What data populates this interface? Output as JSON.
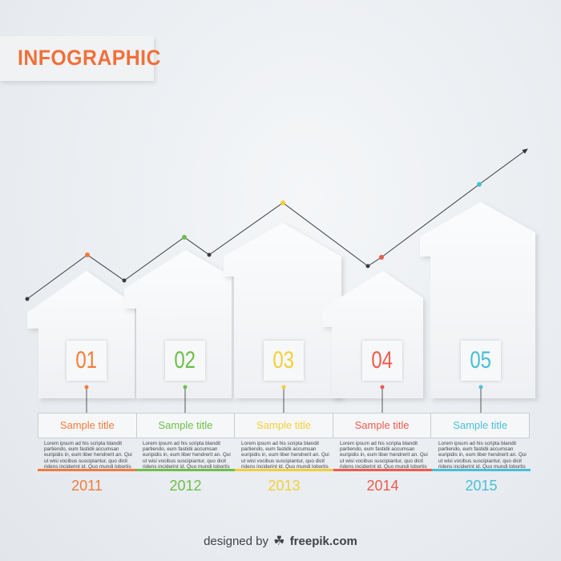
{
  "title": "INFOGRAPHIC",
  "colors": {
    "title": "#f0703a",
    "step1": "#f27c3c",
    "step2": "#6dbf4b",
    "step3": "#f2cf3b",
    "step4": "#f05a4e",
    "step5": "#49bfd8"
  },
  "steps": [
    {
      "number": "01",
      "title": "Sample title",
      "year": "2011",
      "text": "Lorem ipsum ad his scripta blandit partiendo, eum fastidii accumsan euripidis in, eum liber hendrerit an. Qui ut wisi vocibus suscipiantur, quo dicit ridens inciderint id. Quo mundi lobortis"
    },
    {
      "number": "02",
      "title": "Sample title",
      "year": "2012",
      "text": "Lorem ipsum ad his scripta blandit partiendo, eum fastidii accumsan euripidis in, eum liber hendrerit an. Qui ut wisi vocibus suscipiantur, quo dicit ridens inciderint id. Quo mundi lobortis"
    },
    {
      "number": "03",
      "title": "Sample title",
      "year": "2013",
      "text": "Lorem ipsum ad his scripta blandit partiendo, eum fastidii accumsan euripidis in, eum liber hendrerit an. Qui ut wisi vocibus suscipiantur, quo dicit ridens inciderint id. Quo mundi lobortis"
    },
    {
      "number": "04",
      "title": "Sample title",
      "year": "2014",
      "text": "Lorem ipsum ad his scripta blandit partiendo, eum fastidii accumsan euripidis in, eum liber hendrerit an. Qui ut wisi vocibus suscipiantur, quo dicit ridens inciderint id. Quo mundi lobortis"
    },
    {
      "number": "05",
      "title": "Sample title",
      "year": "2015",
      "text": "Lorem ipsum ad his scripta blandit partiendo, eum fastidii accumsan euripidis in, eum liber hendrerit an. Qui ut wisi vocibus suscipiantur, quo dicit ridens inciderint id. Quo mundi lobortis"
    }
  ],
  "credit": {
    "prefix": "designed by",
    "brand": "freepik.com",
    "logo_icon": "freepik-logo-icon"
  }
}
